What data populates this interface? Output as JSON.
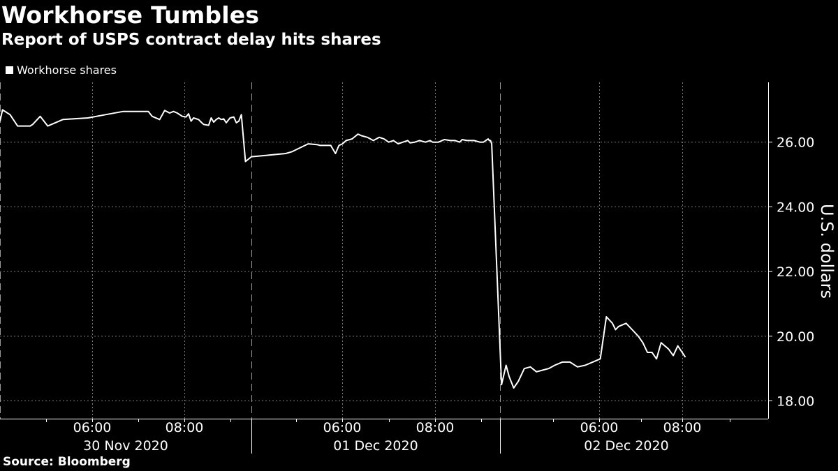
{
  "title": "Workhorse Tumbles",
  "subtitle": "Report of USPS contract delay hits shares",
  "legend": [
    {
      "name": "Workhorse shares",
      "color": "#ffffff"
    }
  ],
  "source": "Source: Bloomberg",
  "colors": {
    "background": "#000000",
    "line": "#ffffff",
    "grid": "#7a7a7a"
  },
  "chart_data": {
    "type": "line",
    "title": "Workhorse Tumbles",
    "subtitle": "Report of USPS contract delay hits shares",
    "xlabel": "",
    "ylabel": "U.S. dollars",
    "ylim": [
      17.45,
      27.85
    ],
    "yticks": [
      18,
      20,
      22,
      24,
      26
    ],
    "ytick_labels": [
      "18.00",
      "20.00",
      "22.00",
      "24.00",
      "26.00"
    ],
    "y_axis_position": "right",
    "grid": true,
    "legend_position": "top-left",
    "days": [
      {
        "label": "30 Nov 2020",
        "times": [
          "06:00",
          "08:00"
        ]
      },
      {
        "label": "01 Dec 2020",
        "times": [
          "06:00",
          "08:00"
        ]
      },
      {
        "label": "02 Dec 2020",
        "times": [
          "06:00",
          "08:00"
        ]
      }
    ],
    "series": [
      {
        "name": "Workhorse shares",
        "x": [
          "30 Nov 01:00",
          "30 Nov 01:06",
          "30 Nov 01:24",
          "30 Nov 01:42",
          "30 Nov 02:00",
          "30 Nov 02:12",
          "30 Nov 02:18",
          "30 Nov 02:36",
          "30 Nov 02:54",
          "30 Nov 03:30",
          "30 Nov 04:30",
          "30 Nov 05:12",
          "30 Nov 05:54",
          "30 Nov 06:36",
          "30 Nov 06:48",
          "30 Nov 06:54",
          "30 Nov 07:03",
          "30 Nov 07:21",
          "30 Nov 07:33",
          "30 Nov 07:45",
          "30 Nov 07:54",
          "30 Nov 08:03",
          "30 Nov 08:15",
          "30 Nov 08:24",
          "30 Nov 08:30",
          "30 Nov 08:36",
          "30 Nov 08:42",
          "30 Nov 08:54",
          "30 Nov 09:00",
          "30 Nov 09:06",
          "30 Nov 09:18",
          "30 Nov 09:24",
          "30 Nov 09:30",
          "30 Nov 09:36",
          "30 Nov 09:42",
          "30 Nov 09:48",
          "30 Nov 09:54",
          "30 Nov 10:00",
          "30 Nov 10:09",
          "30 Nov 10:18",
          "30 Nov 10:24",
          "30 Nov 10:30",
          "30 Nov 10:36",
          "01 Dec 00:15",
          "01 Dec 00:30",
          "01 Dec 01:15",
          "01 Dec 01:57",
          "01 Dec 02:12",
          "01 Dec 02:54",
          "01 Dec 03:18",
          "01 Dec 03:24",
          "01 Dec 03:36",
          "01 Dec 03:51",
          "01 Dec 04:03",
          "01 Dec 04:12",
          "01 Dec 04:21",
          "01 Dec 04:30",
          "01 Dec 04:45",
          "01 Dec 05:00",
          "01 Dec 05:09",
          "01 Dec 05:24",
          "01 Dec 05:39",
          "01 Dec 05:54",
          "01 Dec 06:06",
          "01 Dec 06:18",
          "01 Dec 06:30",
          "01 Dec 06:42",
          "01 Dec 06:54",
          "01 Dec 07:06",
          "01 Dec 07:12",
          "01 Dec 07:24",
          "01 Dec 07:36",
          "01 Dec 07:51",
          "01 Dec 08:03",
          "01 Dec 08:09",
          "01 Dec 08:24",
          "01 Dec 08:39",
          "01 Dec 08:54",
          "01 Dec 09:06",
          "01 Dec 09:18",
          "01 Dec 09:24",
          "01 Dec 09:36",
          "01 Dec 09:42",
          "01 Dec 09:54",
          "01 Dec 10:09",
          "01 Dec 10:18",
          "01 Dec 10:30",
          "01 Dec 10:33",
          "01 Dec 10:36",
          "01 Dec 10:39",
          "01 Dec 10:45",
          "01 Dec 10:54",
          "01 Dec 11:00",
          "01 Dec 11:09",
          "01 Dec 11:18",
          "01 Dec 11:30",
          "01 Dec 11:42",
          "01 Dec 11:54",
          "01 Dec 12:06",
          "01 Dec 12:18",
          "01 Dec 12:30",
          "01 Dec 12:45",
          "01 Dec 13:00",
          "01 Dec 13:15",
          "01 Dec 13:30",
          "01 Dec 13:45",
          "01 Dec 14:00",
          "01 Dec 14:12",
          "01 Dec 14:24",
          "01 Dec 14:30",
          "01 Dec 14:36",
          "01 Dec 14:51",
          "01 Dec 15:03",
          "01 Dec 15:15",
          "01 Dec 15:24",
          "01 Dec 15:33",
          "01 Dec 15:42",
          "01 Dec 15:51",
          "01 Dec 16:00",
          "01 Dec 16:15",
          "01 Dec 16:24",
          "01 Dec 16:33",
          "01 Dec 16:48"
        ],
        "values": [
          26.65,
          27.0,
          26.85,
          26.5,
          26.5,
          26.5,
          26.55,
          26.8,
          26.5,
          26.7,
          26.75,
          26.85,
          26.95,
          26.95,
          26.95,
          26.95,
          26.8,
          26.7,
          26.98,
          26.9,
          26.95,
          26.9,
          26.8,
          26.78,
          26.88,
          26.65,
          26.75,
          26.7,
          26.62,
          26.55,
          26.52,
          26.75,
          26.62,
          26.7,
          26.75,
          26.7,
          26.72,
          26.6,
          26.75,
          26.78,
          26.6,
          26.65,
          26.85,
          25.4,
          25.55,
          25.6,
          25.65,
          25.7,
          25.95,
          25.92,
          25.9,
          25.9,
          25.9,
          25.65,
          25.9,
          25.95,
          26.05,
          26.1,
          26.25,
          26.2,
          26.15,
          26.05,
          26.15,
          26.1,
          26.0,
          26.05,
          25.95,
          26.0,
          26.05,
          25.98,
          26.0,
          26.05,
          26.0,
          26.05,
          26.0,
          26.0,
          26.08,
          26.05,
          26.05,
          26.0,
          26.08,
          26.05,
          26.05,
          26.05,
          26.0,
          26.0,
          26.1,
          26.05,
          26.05,
          25.95,
          18.5,
          19.1,
          18.75,
          18.4,
          18.6,
          19.0,
          19.05,
          18.9,
          18.95,
          19.0,
          19.1,
          19.2,
          19.2,
          19.05,
          19.1,
          19.2,
          19.3,
          20.6,
          20.4,
          20.2,
          20.3,
          20.4,
          20.2,
          20.0,
          19.8,
          19.5,
          19.5,
          19.3,
          19.8,
          19.6,
          19.4,
          19.7,
          19.35
        ]
      }
    ]
  }
}
